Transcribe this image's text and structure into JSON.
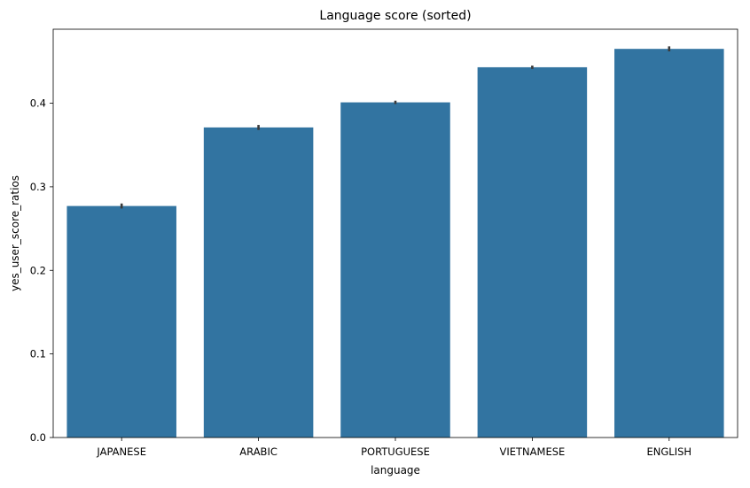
{
  "chart_data": {
    "type": "bar",
    "title": "Language score (sorted)",
    "xlabel": "language",
    "ylabel": "yes_user_score_ratios",
    "categories": [
      "JAPANESE",
      "ARABIC",
      "PORTUGUESE",
      "VIETNAMESE",
      "ENGLISH"
    ],
    "values": [
      0.277,
      0.371,
      0.401,
      0.443,
      0.465
    ],
    "error": [
      0.003,
      0.003,
      0.002,
      0.002,
      0.003
    ],
    "ylim": [
      0,
      0.4885
    ],
    "yticks": [
      0.0,
      0.1,
      0.2,
      0.3,
      0.4
    ],
    "ytick_labels": [
      "0.0",
      "0.1",
      "0.2",
      "0.3",
      "0.4"
    ],
    "grid": false,
    "bar_color": "#3274a1",
    "error_color": "#3b3b3b"
  }
}
